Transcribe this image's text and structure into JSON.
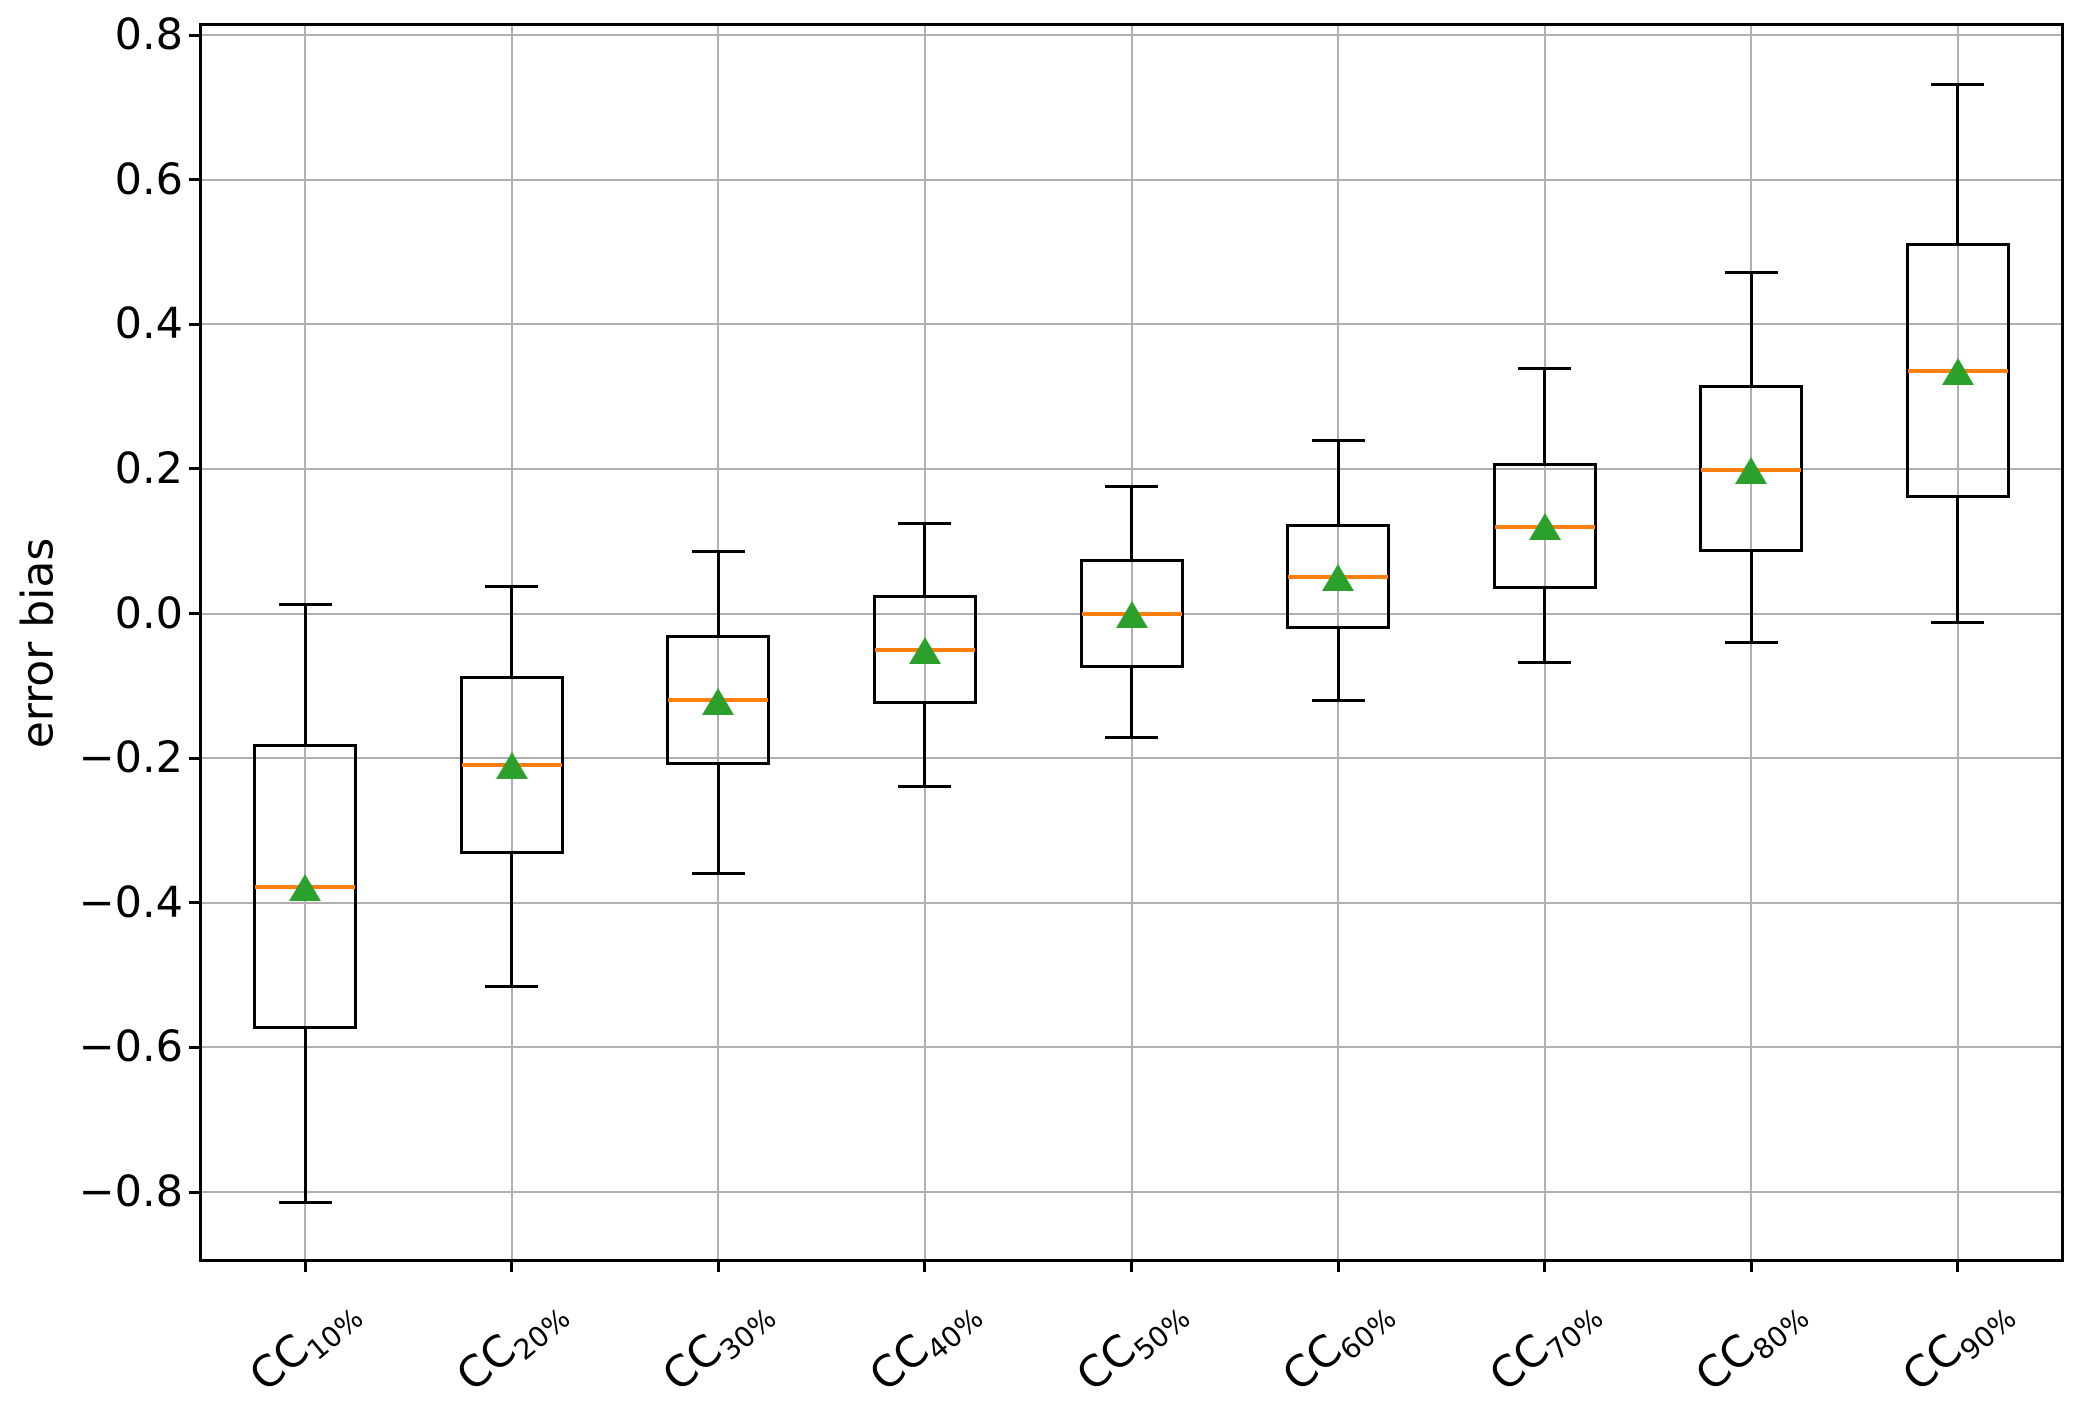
{
  "chart_data": {
    "type": "box",
    "title": "",
    "xlabel": "",
    "ylabel": "error bias",
    "grid": true,
    "legend": null,
    "ylim": [
      -0.8925,
      0.8125
    ],
    "x_tick_rotation_deg": 40,
    "mean_marker_shape": "triangle-up",
    "colors": {
      "box_edge": "#000000",
      "whisker": "#000000",
      "median": "#ff7f0e",
      "mean_marker": "#2ca02c",
      "grid": "#b0b0b0",
      "background": "#ffffff"
    },
    "yticks": [
      {
        "value": 0.8,
        "label": "0.8"
      },
      {
        "value": 0.6,
        "label": "0.6"
      },
      {
        "value": 0.4,
        "label": "0.4"
      },
      {
        "value": 0.2,
        "label": "0.2"
      },
      {
        "value": 0.0,
        "label": "0.0"
      },
      {
        "value": -0.2,
        "label": "−0.2"
      },
      {
        "value": -0.4,
        "label": "−0.4"
      },
      {
        "value": -0.6,
        "label": "−0.6"
      },
      {
        "value": -0.8,
        "label": "−0.8"
      }
    ],
    "categories": [
      {
        "label": "CC10%",
        "prefix": "CC",
        "sub": "10%"
      },
      {
        "label": "CC20%",
        "prefix": "CC",
        "sub": "20%"
      },
      {
        "label": "CC30%",
        "prefix": "CC",
        "sub": "30%"
      },
      {
        "label": "CC40%",
        "prefix": "CC",
        "sub": "40%"
      },
      {
        "label": "CC50%",
        "prefix": "CC",
        "sub": "50%"
      },
      {
        "label": "CC60%",
        "prefix": "CC",
        "sub": "60%"
      },
      {
        "label": "CC70%",
        "prefix": "CC",
        "sub": "70%"
      },
      {
        "label": "CC80%",
        "prefix": "CC",
        "sub": "80%"
      },
      {
        "label": "CC90%",
        "prefix": "CC",
        "sub": "90%"
      }
    ],
    "boxes": [
      {
        "category": "CC10%",
        "whislo": -0.815,
        "q1": -0.575,
        "med": -0.378,
        "mean": -0.378,
        "q3": -0.18,
        "whishi": 0.012
      },
      {
        "category": "CC20%",
        "whislo": -0.515,
        "q1": -0.332,
        "med": -0.209,
        "mean": -0.209,
        "q3": -0.086,
        "whishi": 0.038
      },
      {
        "category": "CC30%",
        "whislo": -0.36,
        "q1": -0.21,
        "med": -0.12,
        "mean": -0.121,
        "q3": -0.029,
        "whishi": 0.086
      },
      {
        "category": "CC40%",
        "whislo": -0.239,
        "q1": -0.125,
        "med": -0.051,
        "mean": -0.051,
        "q3": 0.026,
        "whishi": 0.124
      },
      {
        "category": "CC50%",
        "whislo": -0.171,
        "q1": -0.075,
        "med": 0.0,
        "mean": 0.0,
        "q3": 0.075,
        "whishi": 0.176
      },
      {
        "category": "CC60%",
        "whislo": -0.12,
        "q1": -0.022,
        "med": 0.051,
        "mean": 0.051,
        "q3": 0.124,
        "whishi": 0.24
      },
      {
        "category": "CC70%",
        "whislo": -0.068,
        "q1": 0.034,
        "med": 0.12,
        "mean": 0.121,
        "q3": 0.208,
        "whishi": 0.339
      },
      {
        "category": "CC80%",
        "whislo": -0.04,
        "q1": 0.085,
        "med": 0.198,
        "mean": 0.199,
        "q3": 0.316,
        "whishi": 0.472
      },
      {
        "category": "CC90%",
        "whislo": -0.012,
        "q1": 0.16,
        "med": 0.335,
        "mean": 0.336,
        "q3": 0.512,
        "whishi": 0.732
      }
    ]
  }
}
